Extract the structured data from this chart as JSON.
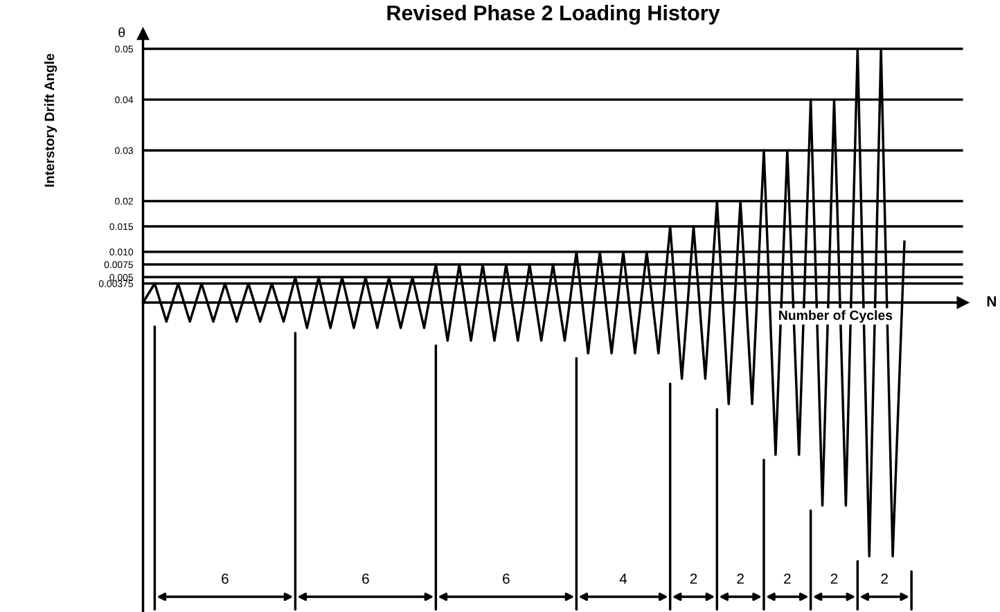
{
  "chart_data": {
    "type": "line",
    "title": "Revised Phase 2 Loading History",
    "xlabel": "Number of Cycles",
    "ylabel": "Interstory Drift Angle",
    "annotations": [
      "θ",
      "N",
      "6",
      "6",
      "6",
      "4",
      "2",
      "2",
      "2",
      "2",
      "2"
    ],
    "categories": [
      null,
      null,
      null,
      null,
      null,
      null,
      null,
      null,
      null,
      null,
      null,
      null,
      null,
      null,
      null,
      null,
      null,
      null,
      null,
      null,
      null,
      null,
      null,
      null,
      null,
      null,
      null,
      null,
      null,
      null,
      null,
      null,
      null,
      null,
      null,
      null,
      null,
      null,
      null,
      null,
      null,
      null,
      null,
      null,
      null,
      null,
      null,
      null,
      null,
      null,
      null,
      null,
      null,
      null,
      null,
      null,
      null,
      null,
      null,
      null,
      null,
      null,
      null,
      null,
      null,
      null
    ],
    "series": [
      {
        "color": "#000000",
        "values": [
          0,
          0.00375,
          -0.00375,
          0.00375,
          -0.00375,
          0.00375,
          -0.00375,
          0.00375,
          -0.00375,
          0.00375,
          -0.00375,
          0.00375,
          -0.00375,
          0.005,
          -0.005,
          0.005,
          -0.005,
          0.005,
          -0.005,
          0.005,
          -0.005,
          0.005,
          -0.005,
          0.005,
          -0.005,
          0.0075,
          -0.0075,
          0.0075,
          -0.0075,
          0.0075,
          -0.0075,
          0.0075,
          -0.0075,
          0.0075,
          -0.0075,
          0.0075,
          -0.0075,
          0.01,
          -0.01,
          0.01,
          -0.01,
          0.01,
          -0.01,
          0.01,
          -0.01,
          0.015,
          -0.015,
          0.015,
          -0.015,
          0.02,
          -0.02,
          0.02,
          -0.02,
          0.03,
          -0.03,
          0.03,
          -0.03,
          0.04,
          -0.04,
          0.04,
          -0.04,
          0.05,
          -0.05,
          0.05,
          -0.05,
          0.012
        ]
      }
    ],
    "ylim": [
      -0.061,
      0.053
    ],
    "yticks": [
      0.00375,
      0.005,
      0.0075,
      {
        "value": 0.01,
        "label": "0.010"
      },
      0.015,
      0.02,
      0.03,
      0.04,
      0.05
    ],
    "grid": "y",
    "marker": "none",
    "line_style": "solid",
    "legend": false
  }
}
